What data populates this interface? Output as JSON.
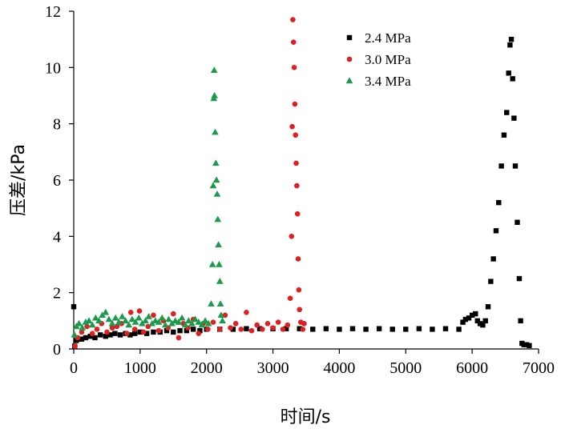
{
  "chart_data": {
    "type": "scatter",
    "xlabel": "时间/s",
    "ylabel": "压差/kPa",
    "xlim": [
      0,
      7000
    ],
    "ylim": [
      0,
      12
    ],
    "xticks": [
      0,
      1000,
      2000,
      3000,
      4000,
      5000,
      6000,
      7000
    ],
    "yticks": [
      0,
      2,
      4,
      6,
      8,
      10,
      12
    ],
    "grid": false,
    "legend_position": "top-right",
    "series": [
      {
        "name": "2.4 MPa",
        "marker": "square",
        "color": "#000000",
        "points": [
          [
            0,
            1.5
          ],
          [
            15,
            0.1
          ],
          [
            40,
            0.3
          ],
          [
            80,
            0.35
          ],
          [
            120,
            0.35
          ],
          [
            180,
            0.4
          ],
          [
            250,
            0.45
          ],
          [
            320,
            0.4
          ],
          [
            400,
            0.5
          ],
          [
            480,
            0.45
          ],
          [
            550,
            0.5
          ],
          [
            620,
            0.55
          ],
          [
            700,
            0.5
          ],
          [
            780,
            0.55
          ],
          [
            850,
            0.5
          ],
          [
            920,
            0.55
          ],
          [
            1000,
            0.6
          ],
          [
            1100,
            0.55
          ],
          [
            1200,
            0.6
          ],
          [
            1300,
            0.6
          ],
          [
            1400,
            0.65
          ],
          [
            1500,
            0.6
          ],
          [
            1600,
            0.65
          ],
          [
            1700,
            0.65
          ],
          [
            1800,
            0.7
          ],
          [
            1900,
            0.65
          ],
          [
            2000,
            0.7
          ],
          [
            2200,
            0.7
          ],
          [
            2400,
            0.7
          ],
          [
            2600,
            0.72
          ],
          [
            2800,
            0.72
          ],
          [
            3000,
            0.72
          ],
          [
            3200,
            0.72
          ],
          [
            3400,
            0.72
          ],
          [
            3600,
            0.7
          ],
          [
            3800,
            0.72
          ],
          [
            4000,
            0.7
          ],
          [
            4200,
            0.72
          ],
          [
            4400,
            0.7
          ],
          [
            4600,
            0.72
          ],
          [
            4800,
            0.7
          ],
          [
            5000,
            0.7
          ],
          [
            5200,
            0.72
          ],
          [
            5400,
            0.7
          ],
          [
            5600,
            0.72
          ],
          [
            5800,
            0.7
          ],
          [
            5860,
            0.95
          ],
          [
            5900,
            1.05
          ],
          [
            5950,
            1.1
          ],
          [
            6000,
            1.2
          ],
          [
            6050,
            1.25
          ],
          [
            6080,
            1.0
          ],
          [
            6120,
            0.9
          ],
          [
            6160,
            0.85
          ],
          [
            6200,
            1.0
          ],
          [
            6240,
            1.5
          ],
          [
            6280,
            2.4
          ],
          [
            6320,
            3.2
          ],
          [
            6360,
            4.2
          ],
          [
            6400,
            5.2
          ],
          [
            6440,
            6.5
          ],
          [
            6480,
            7.6
          ],
          [
            6520,
            8.4
          ],
          [
            6550,
            9.8
          ],
          [
            6570,
            10.8
          ],
          [
            6590,
            11.0
          ],
          [
            6610,
            9.6
          ],
          [
            6630,
            8.2
          ],
          [
            6650,
            6.5
          ],
          [
            6680,
            4.5
          ],
          [
            6710,
            2.5
          ],
          [
            6730,
            1.0
          ],
          [
            6750,
            0.2
          ],
          [
            6780,
            0.15
          ],
          [
            6820,
            0.15
          ],
          [
            6860,
            0.12
          ]
        ]
      },
      {
        "name": "3.0 MPa",
        "marker": "circle",
        "color": "#e02020",
        "points": [
          [
            20,
            0.1
          ],
          [
            60,
            0.4
          ],
          [
            120,
            0.6
          ],
          [
            200,
            0.8
          ],
          [
            280,
            0.55
          ],
          [
            350,
            0.7
          ],
          [
            420,
            0.9
          ],
          [
            500,
            0.6
          ],
          [
            580,
            0.75
          ],
          [
            650,
            0.8
          ],
          [
            720,
            0.9
          ],
          [
            800,
            0.55
          ],
          [
            860,
            1.3
          ],
          [
            920,
            0.7
          ],
          [
            990,
            1.35
          ],
          [
            1050,
            0.6
          ],
          [
            1120,
            0.8
          ],
          [
            1200,
            1.2
          ],
          [
            1280,
            0.65
          ],
          [
            1350,
            1.0
          ],
          [
            1420,
            0.75
          ],
          [
            1500,
            1.25
          ],
          [
            1580,
            0.4
          ],
          [
            1650,
            0.9
          ],
          [
            1720,
            0.75
          ],
          [
            1800,
            1.05
          ],
          [
            1880,
            0.55
          ],
          [
            1950,
            0.9
          ],
          [
            2020,
            0.7
          ],
          [
            2100,
            0.95
          ],
          [
            2200,
            0.7
          ],
          [
            2280,
            1.2
          ],
          [
            2360,
            0.75
          ],
          [
            2440,
            0.9
          ],
          [
            2520,
            0.7
          ],
          [
            2600,
            1.3
          ],
          [
            2680,
            0.65
          ],
          [
            2760,
            0.85
          ],
          [
            2840,
            0.7
          ],
          [
            2920,
            0.9
          ],
          [
            3000,
            0.75
          ],
          [
            3080,
            0.95
          ],
          [
            3150,
            0.7
          ],
          [
            3220,
            0.85
          ],
          [
            3260,
            1.8
          ],
          [
            3280,
            4.0
          ],
          [
            3290,
            7.9
          ],
          [
            3300,
            11.7
          ],
          [
            3310,
            10.9
          ],
          [
            3320,
            10.0
          ],
          [
            3330,
            8.7
          ],
          [
            3340,
            7.6
          ],
          [
            3350,
            6.6
          ],
          [
            3360,
            5.8
          ],
          [
            3370,
            4.8
          ],
          [
            3380,
            3.2
          ],
          [
            3390,
            2.1
          ],
          [
            3400,
            1.4
          ],
          [
            3420,
            0.95
          ],
          [
            3450,
            0.7
          ],
          [
            3470,
            0.9
          ]
        ]
      },
      {
        "name": "3.4 MPa",
        "marker": "triangle",
        "color": "#1a9a4a",
        "points": [
          [
            10,
            0.5
          ],
          [
            40,
            0.8
          ],
          [
            80,
            0.9
          ],
          [
            130,
            0.75
          ],
          [
            180,
            0.95
          ],
          [
            230,
            1.0
          ],
          [
            280,
            0.85
          ],
          [
            330,
            1.1
          ],
          [
            380,
            1.0
          ],
          [
            430,
            1.2
          ],
          [
            480,
            1.3
          ],
          [
            530,
            1.05
          ],
          [
            580,
            0.9
          ],
          [
            630,
            1.1
          ],
          [
            680,
            0.95
          ],
          [
            730,
            1.15
          ],
          [
            780,
            1.0
          ],
          [
            830,
            0.85
          ],
          [
            880,
            1.05
          ],
          [
            930,
            0.95
          ],
          [
            980,
            1.1
          ],
          [
            1030,
            0.9
          ],
          [
            1080,
            1.0
          ],
          [
            1130,
            1.15
          ],
          [
            1180,
            0.9
          ],
          [
            1230,
            1.0
          ],
          [
            1280,
            0.95
          ],
          [
            1330,
            1.1
          ],
          [
            1380,
            0.85
          ],
          [
            1430,
            1.05
          ],
          [
            1480,
            0.9
          ],
          [
            1530,
            1.0
          ],
          [
            1580,
            0.95
          ],
          [
            1630,
            1.1
          ],
          [
            1680,
            0.85
          ],
          [
            1730,
            1.0
          ],
          [
            1780,
            0.9
          ],
          [
            1830,
            1.05
          ],
          [
            1880,
            0.95
          ],
          [
            1930,
            0.85
          ],
          [
            1980,
            1.0
          ],
          [
            2030,
            0.9
          ],
          [
            2070,
            1.6
          ],
          [
            2090,
            3.0
          ],
          [
            2100,
            5.8
          ],
          [
            2110,
            8.9
          ],
          [
            2115,
            9.9
          ],
          [
            2120,
            9.0
          ],
          [
            2130,
            7.7
          ],
          [
            2140,
            6.6
          ],
          [
            2150,
            6.0
          ],
          [
            2160,
            5.5
          ],
          [
            2170,
            4.6
          ],
          [
            2180,
            3.7
          ],
          [
            2190,
            3.0
          ],
          [
            2200,
            2.4
          ],
          [
            2210,
            1.6
          ],
          [
            2220,
            1.2
          ],
          [
            2240,
            1.0
          ]
        ]
      }
    ]
  }
}
